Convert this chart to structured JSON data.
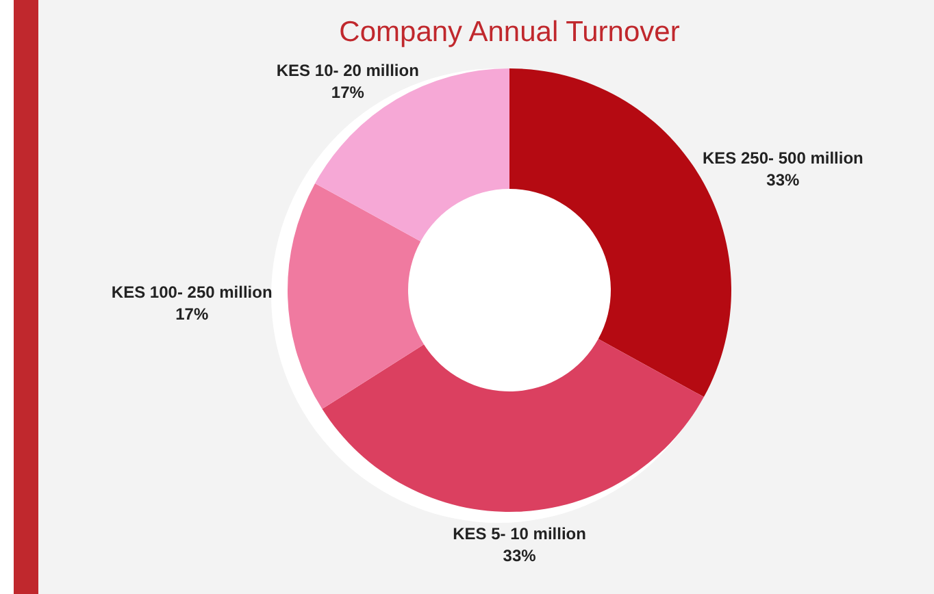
{
  "chart_data": {
    "type": "donut",
    "title": "Company Annual Turnover",
    "categories": [
      "KES 250- 500 million",
      "KES 5- 10 million",
      "KES 100- 250 million",
      "KES 10- 20 million"
    ],
    "values": [
      33,
      33,
      17,
      17
    ],
    "colors": [
      "#b50a12",
      "#db4060",
      "#f07aa0",
      "#f6a8d6"
    ],
    "value_labels": [
      "33%",
      "33%",
      "17%",
      "17%"
    ]
  }
}
